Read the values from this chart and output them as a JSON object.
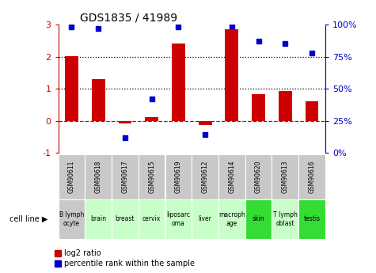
{
  "title": "GDS1835 / 41989",
  "gsm_labels": [
    "GSM90611",
    "GSM90618",
    "GSM90617",
    "GSM90615",
    "GSM90619",
    "GSM90612",
    "GSM90614",
    "GSM90620",
    "GSM90613",
    "GSM90616"
  ],
  "cell_line_labels": [
    "B lymph\nocyte",
    "brain",
    "breast",
    "cervix",
    "liposarc\noma",
    "liver",
    "macroph\nage",
    "skin",
    "T lymph\noblast",
    "testis"
  ],
  "cell_line_colors": [
    "#c8c8c8",
    "#c8ffc8",
    "#c8ffc8",
    "#c8ffc8",
    "#c8ffc8",
    "#c8ffc8",
    "#c8ffc8",
    "#33dd33",
    "#c8ffc8",
    "#33dd33"
  ],
  "log2_ratio": [
    2.02,
    1.3,
    -0.08,
    0.12,
    2.42,
    -0.12,
    2.85,
    0.82,
    0.92,
    0.6
  ],
  "percentile_rank": [
    98,
    97,
    12,
    42,
    98,
    14,
    99,
    87,
    85,
    78
  ],
  "ylim_left": [
    -1,
    3
  ],
  "bar_color": "#cc0000",
  "dot_color": "#0000cc",
  "gsm_box_color": "#c8c8c8",
  "right_ytick_labels": [
    "0%",
    "25%",
    "50%",
    "75%",
    "100%"
  ],
  "right_ytick_vals": [
    0,
    25,
    50,
    75,
    100
  ]
}
